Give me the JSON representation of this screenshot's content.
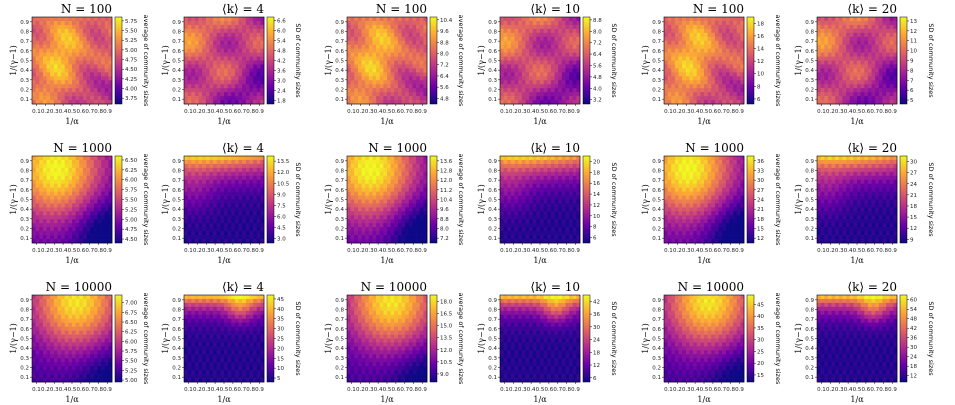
{
  "figure": {
    "xlabel": "1/α",
    "ylabel": "1/(γ−1)",
    "x_ticks": [
      "0.1",
      "0.2",
      "0.3",
      "0.4",
      "0.5",
      "0.6",
      "0.7",
      "0.8",
      "0.9"
    ],
    "y_ticks": [
      "0.9",
      "0.8",
      "0.7",
      "0.6",
      "0.5",
      "0.4",
      "0.3",
      "0.2",
      "0.1"
    ],
    "colormap": [
      "#0d0887",
      "#6a00a8",
      "#b12a90",
      "#e16462",
      "#fca636",
      "#f0f921"
    ],
    "avg_label": "average of community sizes",
    "sd_label": "SD of community sizes"
  },
  "chart_data": [
    {
      "type": "heatmap",
      "title": "N = 100",
      "metric": "average",
      "cbar_ticks": [
        "5.75",
        "5.50",
        "5.25",
        "5.00",
        "4.75",
        "4.50",
        "4.25",
        "4.00",
        "3.75"
      ],
      "range": [
        3.6,
        5.85
      ],
      "pattern": "n100a"
    },
    {
      "type": "heatmap",
      "title": "⟨k⟩ = 4",
      "metric": "sd",
      "cbar_ticks": [
        "6.6",
        "6.0",
        "5.4",
        "4.8",
        "4.2",
        "3.6",
        "3.0",
        "2.4",
        "1.8"
      ],
      "range": [
        1.6,
        6.8
      ],
      "pattern": "n100s"
    },
    {
      "type": "heatmap",
      "title": "N = 100",
      "metric": "average",
      "cbar_ticks": [
        "10.4",
        "9.6",
        "8.8",
        "8.0",
        "7.2",
        "6.4",
        "5.6",
        "4.8"
      ],
      "range": [
        4.4,
        10.6
      ],
      "pattern": "n100a"
    },
    {
      "type": "heatmap",
      "title": "⟨k⟩ = 10",
      "metric": "sd",
      "cbar_ticks": [
        "8.8",
        "8.0",
        "7.2",
        "6.4",
        "5.6",
        "4.8",
        "4.0",
        "3.2"
      ],
      "range": [
        2.9,
        9.0
      ],
      "pattern": "n100s"
    },
    {
      "type": "heatmap",
      "title": "N = 100",
      "metric": "average",
      "cbar_ticks": [
        "18",
        "16",
        "14",
        "12",
        "10",
        "8",
        "6"
      ],
      "range": [
        5.2,
        19
      ],
      "pattern": "n100a"
    },
    {
      "type": "heatmap",
      "title": "⟨k⟩ = 20",
      "metric": "sd",
      "cbar_ticks": [
        "13",
        "12",
        "11",
        "10",
        "9",
        "8",
        "7",
        "6",
        "5"
      ],
      "range": [
        4.6,
        13.4
      ],
      "pattern": "n100s"
    },
    {
      "type": "heatmap",
      "title": "N = 1000",
      "metric": "average",
      "cbar_ticks": [
        "6.50",
        "6.25",
        "6.00",
        "5.75",
        "5.50",
        "5.25",
        "5.00",
        "4.75",
        "4.50"
      ],
      "range": [
        4.4,
        6.6
      ],
      "pattern": "n1000a"
    },
    {
      "type": "heatmap",
      "title": "⟨k⟩ = 4",
      "metric": "sd",
      "cbar_ticks": [
        "13.5",
        "12.0",
        "10.5",
        "9.0",
        "7.5",
        "6.0",
        "4.5",
        "3.0"
      ],
      "range": [
        2.4,
        14.2
      ],
      "pattern": "n1000s"
    },
    {
      "type": "heatmap",
      "title": "N = 1000",
      "metric": "average",
      "cbar_ticks": [
        "13.6",
        "12.8",
        "12.0",
        "11.2",
        "10.4",
        "9.6",
        "8.8",
        "8.0",
        "7.2"
      ],
      "range": [
        6.8,
        14.0
      ],
      "pattern": "n1000a"
    },
    {
      "type": "heatmap",
      "title": "⟨k⟩ = 10",
      "metric": "sd",
      "cbar_ticks": [
        "20",
        "18",
        "16",
        "14",
        "12",
        "10",
        "8",
        "6"
      ],
      "range": [
        5.0,
        21.0
      ],
      "pattern": "n1000s"
    },
    {
      "type": "heatmap",
      "title": "N = 1000",
      "metric": "average",
      "cbar_ticks": [
        "36",
        "33",
        "30",
        "27",
        "24",
        "21",
        "18",
        "15",
        "12"
      ],
      "range": [
        10.5,
        37.5
      ],
      "pattern": "n1000a"
    },
    {
      "type": "heatmap",
      "title": "⟨k⟩ = 20",
      "metric": "sd",
      "cbar_ticks": [
        "30",
        "27",
        "24",
        "21",
        "18",
        "15",
        "12",
        "9"
      ],
      "range": [
        8,
        31.5
      ],
      "pattern": "n1000s"
    },
    {
      "type": "heatmap",
      "title": "N = 10000",
      "metric": "average",
      "cbar_ticks": [
        "7.00",
        "6.75",
        "6.50",
        "6.25",
        "6.00",
        "5.75",
        "5.50",
        "5.25",
        "5.00"
      ],
      "range": [
        4.95,
        7.2
      ],
      "pattern": "n10000a"
    },
    {
      "type": "heatmap",
      "title": "⟨k⟩ = 4",
      "metric": "sd",
      "cbar_ticks": [
        "45",
        "40",
        "35",
        "30",
        "25",
        "20",
        "15",
        "10",
        "5"
      ],
      "range": [
        3,
        47
      ],
      "pattern": "n10000s"
    },
    {
      "type": "heatmap",
      "title": "N = 10000",
      "metric": "average",
      "cbar_ticks": [
        "18.0",
        "16.5",
        "15.0",
        "13.5",
        "12.0",
        "10.5",
        "9.0"
      ],
      "range": [
        8.0,
        18.8
      ],
      "pattern": "n10000a"
    },
    {
      "type": "heatmap",
      "title": "⟨k⟩ = 10",
      "metric": "sd",
      "cbar_ticks": [
        "42",
        "36",
        "30",
        "24",
        "18",
        "12",
        "6"
      ],
      "range": [
        4,
        45
      ],
      "pattern": "n10000s"
    },
    {
      "type": "heatmap",
      "title": "N = 10000",
      "metric": "average",
      "cbar_ticks": [
        "45",
        "40",
        "35",
        "30",
        "25",
        "20",
        "15"
      ],
      "range": [
        12,
        49
      ],
      "pattern": "n10000a"
    },
    {
      "type": "heatmap",
      "title": "⟨k⟩ = 20",
      "metric": "sd",
      "cbar_ticks": [
        "60",
        "54",
        "48",
        "42",
        "36",
        "30",
        "24",
        "18",
        "12"
      ],
      "range": [
        8,
        63
      ],
      "pattern": "n10000s"
    }
  ]
}
